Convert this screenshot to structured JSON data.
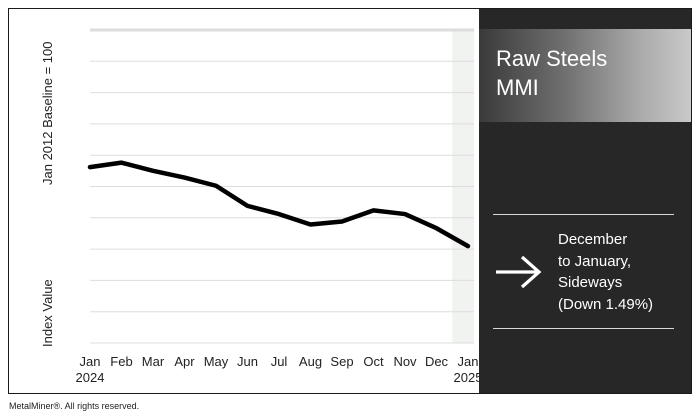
{
  "chart_data": {
    "type": "line",
    "ylabel_top": "Jan 2012 Baseline = 100",
    "ylabel_bottom": "Index Value",
    "categories": [
      "Jan",
      "Feb",
      "Mar",
      "Apr",
      "May",
      "Jun",
      "Jul",
      "Aug",
      "Sep",
      "Oct",
      "Nov",
      "Dec",
      "Jan"
    ],
    "year_labels": [
      {
        "index": 0,
        "text": "2024"
      },
      {
        "index": 12,
        "text": "2025"
      }
    ],
    "values": [
      5.3,
      5.6,
      5.05,
      4.6,
      4.05,
      2.7,
      2.15,
      1.45,
      1.65,
      2.4,
      2.15,
      1.2,
      0.0
    ],
    "x_positions_note": "",
    "ylim": [
      -6.5,
      14.5
    ],
    "grid": true,
    "highlight_last_month": true,
    "line_color": "#000000",
    "grid_color": "#dddddd",
    "highlight_color": "#f1f3f0"
  },
  "panel": {
    "title_line1": "Raw Steels",
    "title_line2": "MMI",
    "summary_lines": [
      "December",
      "to January,",
      "Sideways",
      "(Down 1.49%)"
    ],
    "arrow_icon": "right-arrow-icon",
    "background": "#272727"
  },
  "footer": {
    "text": "MetalMiner®. All rights reserved."
  }
}
